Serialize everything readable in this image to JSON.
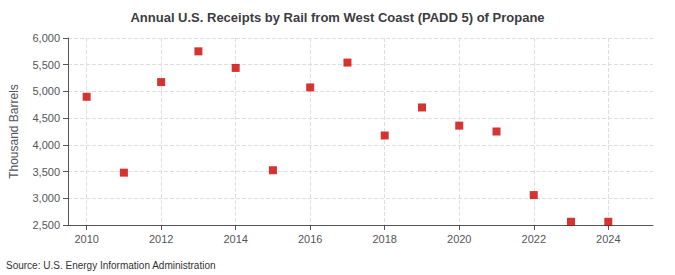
{
  "chart_data": {
    "type": "scatter",
    "title": "Annual U.S. Receipts by Rail from West Coast (PADD 5) of Propane",
    "ylabel": "Thousand Barrels",
    "annotation": "Source: U.S. Energy Information Administration",
    "x": [
      2010,
      2011,
      2012,
      2013,
      2014,
      2015,
      2016,
      2017,
      2018,
      2019,
      2020,
      2021,
      2022,
      2023,
      2024
    ],
    "values": [
      4900,
      3480,
      5175,
      5750,
      5440,
      3525,
      5075,
      5540,
      4175,
      4700,
      4360,
      4250,
      3060,
      2560,
      2560
    ],
    "color": "#cc0000",
    "marker": "square",
    "xlim": [
      2009.5,
      2025.2
    ],
    "xticks": [
      2010,
      2012,
      2014,
      2016,
      2018,
      2020,
      2022,
      2024
    ],
    "ylim": [
      2500,
      6000
    ],
    "yticks": [
      {
        "value": 2500,
        "label": "2,500"
      },
      {
        "value": 3000,
        "label": "3,000"
      },
      {
        "value": 3500,
        "label": "3,500"
      },
      {
        "value": 4000,
        "label": "4,000"
      },
      {
        "value": 4500,
        "label": "4,500"
      },
      {
        "value": 5000,
        "label": "5,000"
      },
      {
        "value": 5500,
        "label": "5,500"
      },
      {
        "value": 6000,
        "label": "6,000"
      }
    ],
    "grid": true
  }
}
